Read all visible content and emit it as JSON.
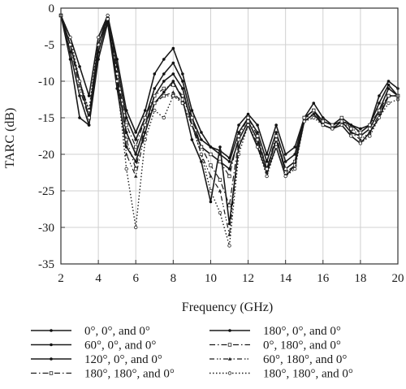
{
  "chart_data": {
    "type": "line",
    "xlabel": "Frequency (GHz)",
    "ylabel": "TARC (dB)",
    "xlim": [
      2,
      20
    ],
    "ylim": [
      -35,
      0
    ],
    "xticks": [
      2,
      4,
      6,
      8,
      10,
      12,
      14,
      16,
      18,
      20
    ],
    "yticks": [
      0,
      -5,
      -10,
      -15,
      -20,
      -25,
      -30,
      -35
    ],
    "grid": true,
    "legend_position": "bottom",
    "series": [
      {
        "name": "0°, 0°, and 0°",
        "style": "solid",
        "x": [
          2,
          2.5,
          3,
          3.5,
          4,
          4.5,
          5,
          5.5,
          6,
          6.5,
          7,
          7.5,
          8,
          8.5,
          9,
          9.5,
          10,
          10.5,
          11,
          11.5,
          12,
          12.5,
          13,
          13.5,
          14,
          14.5,
          15,
          15.5,
          16,
          16.5,
          17,
          17.5,
          18,
          18.5,
          19,
          19.5,
          20
        ],
        "y": [
          -1,
          -5,
          -10,
          -15,
          -5,
          -1,
          -8,
          -15,
          -18,
          -15,
          -11,
          -9,
          -7.5,
          -10,
          -15,
          -18,
          -19,
          -20,
          -21,
          -17,
          -15,
          -17,
          -21,
          -17,
          -21,
          -20,
          -15,
          -14,
          -15.5,
          -16,
          -15,
          -16,
          -17,
          -16,
          -13,
          -10.5,
          -12
        ]
      },
      {
        "name": "180°, 0°, and 0°",
        "style": "solid",
        "x": [
          2,
          2.5,
          3,
          3.5,
          4,
          4.5,
          5,
          5.5,
          6,
          6.5,
          7,
          7.5,
          8,
          8.5,
          9,
          9.5,
          10,
          10.5,
          11,
          11.5,
          12,
          12.5,
          13,
          13.5,
          14,
          14.5,
          15,
          15.5,
          16,
          16.5,
          17,
          17.5,
          18,
          18.5,
          19,
          19.5,
          20
        ],
        "y": [
          -1,
          -4,
          -8,
          -12,
          -4,
          -1,
          -7,
          -14,
          -17,
          -14,
          -9,
          -7,
          -5.5,
          -9,
          -14,
          -17,
          -19,
          -19.5,
          -20.5,
          -16,
          -14.5,
          -16,
          -20,
          -16,
          -20,
          -19,
          -15,
          -13,
          -15,
          -16,
          -15.5,
          -16,
          -16.5,
          -16,
          -12,
          -10,
          -11
        ]
      },
      {
        "name": "60°, 0°, and 0°",
        "style": "solid",
        "x": [
          2,
          2.5,
          3,
          3.5,
          4,
          4.5,
          5,
          5.5,
          6,
          6.5,
          7,
          7.5,
          8,
          8.5,
          9,
          9.5,
          10,
          10.5,
          11,
          11.5,
          12,
          12.5,
          13,
          13.5,
          14,
          14.5,
          15,
          15.5,
          16,
          16.5,
          17,
          17.5,
          18,
          18.5,
          19,
          19.5,
          20
        ],
        "y": [
          -1,
          -6,
          -12,
          -16,
          -6,
          -1.5,
          -10,
          -17,
          -20,
          -16,
          -12,
          -10,
          -9,
          -11,
          -16,
          -19,
          -20,
          -21,
          -22,
          -18,
          -15.5,
          -18,
          -22,
          -18,
          -22,
          -21,
          -15,
          -14,
          -16,
          -16.5,
          -15.5,
          -17,
          -17.5,
          -16.5,
          -14,
          -11,
          -12
        ]
      },
      {
        "name": "0°, 180°, and 0°",
        "style": "dashdot",
        "x": [
          2,
          2.5,
          3,
          3.5,
          4,
          4.5,
          5,
          5.5,
          6,
          6.5,
          7,
          7.5,
          8,
          8.5,
          9,
          9.5,
          10,
          10.5,
          11,
          11.5,
          12,
          12.5,
          13,
          13.5,
          14,
          14.5,
          15,
          15.5,
          16,
          16.5,
          17,
          17.5,
          18,
          18.5,
          19,
          19.5,
          20
        ],
        "y": [
          -1,
          -5,
          -11,
          -15,
          -5,
          -1.5,
          -9,
          -16,
          -19,
          -15,
          -12,
          -11,
          -10.5,
          -12,
          -15,
          -19,
          -20,
          -21,
          -23,
          -17.5,
          -15,
          -17.5,
          -22,
          -17.5,
          -22,
          -21,
          -15,
          -14,
          -15.5,
          -16,
          -15,
          -16.5,
          -17,
          -16,
          -14,
          -12,
          -12
        ]
      },
      {
        "name": "120°, 0°, and 0°",
        "style": "solid",
        "x": [
          2,
          2.5,
          3,
          3.5,
          4,
          4.5,
          5,
          5.5,
          6,
          6.5,
          7,
          7.5,
          8,
          8.5,
          9,
          9.5,
          10,
          10.5,
          11,
          11.5,
          12,
          12.5,
          13,
          13.5,
          14,
          14.5,
          15,
          15.5,
          16,
          16.5,
          17,
          17.5,
          18,
          18.5,
          19,
          19.5,
          20
        ],
        "y": [
          -1,
          -7,
          -15,
          -16,
          -7,
          -2,
          -11,
          -19,
          -21,
          -17,
          -13,
          -11.5,
          -10,
          -12.5,
          -18,
          -21,
          -26.5,
          -19,
          -29.5,
          -19,
          -16,
          -19,
          -22.5,
          -19,
          -23,
          -21.5,
          -15.5,
          -14.5,
          -16,
          -16.5,
          -16,
          -17.5,
          -18.5,
          -17,
          -15,
          -12,
          -12
        ]
      },
      {
        "name": "60°, 180°, and 0°",
        "style": "dashdotdot",
        "x": [
          2,
          2.5,
          3,
          3.5,
          4,
          4.5,
          5,
          5.5,
          6,
          6.5,
          7,
          7.5,
          8,
          8.5,
          9,
          9.5,
          10,
          10.5,
          11,
          11.5,
          12,
          12.5,
          13,
          13.5,
          14,
          14.5,
          15,
          15.5,
          16,
          16.5,
          17,
          17.5,
          18,
          18.5,
          19,
          19.5,
          20
        ],
        "y": [
          -1,
          -5,
          -10,
          -14,
          -5,
          -1.5,
          -10,
          -20,
          -23,
          -17,
          -13,
          -12,
          -11.5,
          -13,
          -16,
          -20,
          -23,
          -25,
          -31,
          -19,
          -16,
          -18.5,
          -22.5,
          -18,
          -22.5,
          -21.5,
          -15,
          -14.5,
          -16,
          -16.5,
          -15.5,
          -17,
          -18,
          -17,
          -14.5,
          -12,
          -12
        ]
      },
      {
        "name": "180°, 180°, and 0°",
        "style": "dashdot",
        "x": [
          2,
          2.5,
          3,
          3.5,
          4,
          4.5,
          5,
          5.5,
          6,
          6.5,
          7,
          7.5,
          8,
          8.5,
          9,
          9.5,
          10,
          10.5,
          11,
          11.5,
          12,
          12.5,
          13,
          13.5,
          14,
          14.5,
          15,
          15.5,
          16,
          16.5,
          17,
          17.5,
          18,
          18.5,
          19,
          19.5,
          20
        ],
        "y": [
          -1,
          -5,
          -11,
          -15,
          -5,
          -1.5,
          -9,
          -18,
          -22,
          -16,
          -13,
          -12,
          -12,
          -12.5,
          -15,
          -19,
          -21.5,
          -23.5,
          -27,
          -18,
          -15.5,
          -18,
          -22,
          -18,
          -22.5,
          -21.5,
          -15,
          -14,
          -15.5,
          -16,
          -15.5,
          -16.5,
          -17.5,
          -16.5,
          -14,
          -12,
          -12
        ]
      },
      {
        "name": "180°, 180°, and 0°",
        "style": "dotted",
        "x": [
          2,
          2.5,
          3,
          3.5,
          4,
          4.5,
          5,
          5.5,
          6,
          6.5,
          7,
          7.5,
          8,
          8.5,
          9,
          9.5,
          10,
          10.5,
          11,
          11.5,
          12,
          12.5,
          13,
          13.5,
          14,
          14.5,
          15,
          15.5,
          16,
          16.5,
          17,
          17.5,
          18,
          18.5,
          19,
          19.5,
          20
        ],
        "y": [
          -1,
          -4,
          -10,
          -14,
          -4,
          -1,
          -10,
          -22,
          -30,
          -18,
          -14,
          -15,
          -12,
          -13,
          -16,
          -20,
          -25,
          -28,
          -32.5,
          -20,
          -16,
          -19,
          -23,
          -19,
          -23,
          -22,
          -15.5,
          -15,
          -16,
          -16.5,
          -16,
          -17.5,
          -18.5,
          -17.5,
          -15,
          -13,
          -12.5
        ]
      }
    ]
  }
}
